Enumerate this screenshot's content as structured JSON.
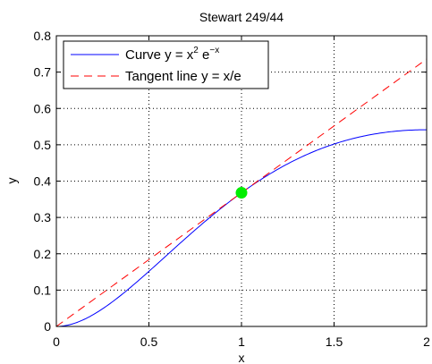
{
  "chart_data": {
    "type": "line",
    "title": "Stewart 249/44",
    "xlabel": "x",
    "ylabel": "y",
    "xlim": [
      0,
      2
    ],
    "ylim": [
      0,
      0.8
    ],
    "xticks": [
      0,
      0.5,
      1,
      1.5,
      2
    ],
    "xtick_labels": [
      "0",
      "0.5",
      "1",
      "1.5",
      "2"
    ],
    "yticks": [
      0,
      0.1,
      0.2,
      0.3,
      0.4,
      0.5,
      0.6,
      0.7,
      0.8
    ],
    "ytick_labels": [
      "0",
      "0.1",
      "0.2",
      "0.3",
      "0.4",
      "0.5",
      "0.6",
      "0.7",
      "0.8"
    ],
    "grid": true,
    "legend_position": "top-left",
    "series": [
      {
        "name": "Curve y = x^2 e^-x",
        "legend_main": "Curve y = x",
        "legend_sup1": "2",
        "legend_mid": " e",
        "legend_sup2": "−x",
        "style": "solid",
        "color": "#0000ff",
        "x": [
          0,
          0.1,
          0.2,
          0.3,
          0.4,
          0.5,
          0.6,
          0.7,
          0.8,
          0.9,
          1.0,
          1.1,
          1.2,
          1.3,
          1.4,
          1.5,
          1.6,
          1.7,
          1.8,
          1.9,
          2.0
        ],
        "y": [
          0,
          0.009,
          0.0327,
          0.0667,
          0.1073,
          0.1516,
          0.1976,
          0.2433,
          0.2876,
          0.3293,
          0.3679,
          0.4027,
          0.4337,
          0.4605,
          0.4833,
          0.502,
          0.5169,
          0.5281,
          0.5358,
          0.5405,
          0.5413
        ]
      },
      {
        "name": "Tangent line y = x/e",
        "style": "dashed",
        "color": "#ff0000",
        "x": [
          0,
          2
        ],
        "y": [
          0,
          0.7358
        ]
      }
    ],
    "points": [
      {
        "x": 1,
        "y": 0.3679,
        "color": "#00ee00"
      }
    ]
  }
}
